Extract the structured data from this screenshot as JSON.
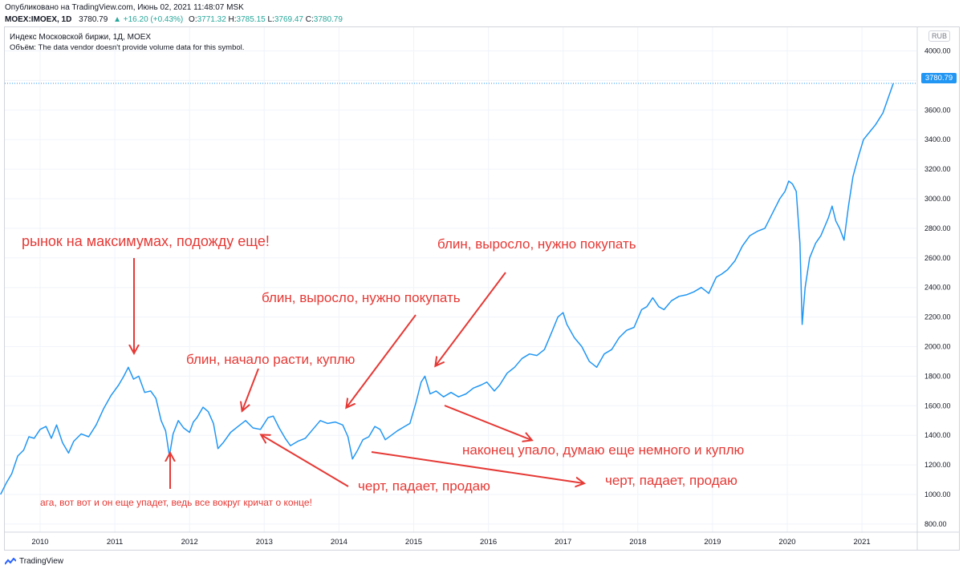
{
  "header": {
    "published": "Опубликовано на TradingView.com, Июнь 02, 2021 11:48:07 MSK",
    "symbol": "MOEX:IMOEX, 1D",
    "last": "3780.79",
    "change": "+16.20 (+0.43%)",
    "o_label": "O:",
    "o_value": "3771.32",
    "h_label": "H:",
    "h_value": "3785.15",
    "l_label": "L:",
    "l_value": "3769.47",
    "c_label": "C:",
    "c_value": "3780.79",
    "up_icon": "triangle-up-icon"
  },
  "legend": {
    "title": "Индекс Московской биржи, 1Д, MOEX",
    "volume": "Объём: The data vendor doesn't provide volume data for this symbol."
  },
  "currency": "RUB",
  "last_price_tag": "3780.79",
  "annotations": {
    "a1": "рынок на максимумах, подожду еще!",
    "a2": "блин, начало расти, куплю",
    "a3": "блин, выросло, нужно покупать",
    "a4": "блин, выросло, нужно покупать",
    "a5": "наконец упало, думаю еще немного и куплю",
    "a6": "черт, падает, продаю",
    "a7": "черт, падает, продаю",
    "a8": "ага, вот вот и он еще упадет, ведь все вокруг кричат о конце!"
  },
  "footer": {
    "brand": "TradingView"
  },
  "colors": {
    "line": "#2196f3",
    "annotation": "#e53935",
    "grid": "#f0f3fa",
    "price_up": "#26a69a"
  },
  "chart_data": {
    "type": "line",
    "x_unit": "year",
    "y_unit": "RUB",
    "ylim": [
      700,
      4100
    ],
    "y_ticks": [
      "4000.00",
      "3800.00",
      "3600.00",
      "3400.00",
      "3200.00",
      "3000.00",
      "2800.00",
      "2600.00",
      "2400.00",
      "2200.00",
      "2000.00",
      "1800.00",
      "1600.00",
      "1400.00",
      "1200.00",
      "1000.00",
      "800.00"
    ],
    "x_ticks": [
      {
        "label": "2010",
        "x": 2010.0
      },
      {
        "label": "2011",
        "x": 2011.0
      },
      {
        "label": "2012",
        "x": 2012.0
      },
      {
        "label": "2013",
        "x": 2013.0
      },
      {
        "label": "2014",
        "x": 2014.0
      },
      {
        "label": "2015",
        "x": 2015.0
      },
      {
        "label": "2016",
        "x": 2016.0
      },
      {
        "label": "2017",
        "x": 2017.0
      },
      {
        "label": "2018",
        "x": 2018.0
      },
      {
        "label": "2019",
        "x": 2019.0
      },
      {
        "label": "2020",
        "x": 2020.0
      },
      {
        "label": "2021",
        "x": 2021.0
      }
    ],
    "last_value": 3780.79,
    "series": [
      {
        "points": [
          [
            2009.47,
            1000
          ],
          [
            2009.55,
            1080
          ],
          [
            2009.62,
            1140
          ],
          [
            2009.7,
            1260
          ],
          [
            2009.78,
            1300
          ],
          [
            2009.85,
            1390
          ],
          [
            2009.92,
            1380
          ],
          [
            2010.0,
            1440
          ],
          [
            2010.08,
            1460
          ],
          [
            2010.15,
            1380
          ],
          [
            2010.22,
            1470
          ],
          [
            2010.3,
            1350
          ],
          [
            2010.38,
            1280
          ],
          [
            2010.45,
            1360
          ],
          [
            2010.55,
            1410
          ],
          [
            2010.65,
            1390
          ],
          [
            2010.75,
            1470
          ],
          [
            2010.85,
            1580
          ],
          [
            2010.95,
            1670
          ],
          [
            2011.05,
            1740
          ],
          [
            2011.12,
            1800
          ],
          [
            2011.18,
            1860
          ],
          [
            2011.25,
            1780
          ],
          [
            2011.32,
            1800
          ],
          [
            2011.4,
            1690
          ],
          [
            2011.48,
            1700
          ],
          [
            2011.55,
            1650
          ],
          [
            2011.62,
            1500
          ],
          [
            2011.68,
            1430
          ],
          [
            2011.73,
            1260
          ],
          [
            2011.78,
            1410
          ],
          [
            2011.85,
            1500
          ],
          [
            2011.92,
            1450
          ],
          [
            2012.0,
            1420
          ],
          [
            2012.05,
            1490
          ],
          [
            2012.1,
            1520
          ],
          [
            2012.18,
            1590
          ],
          [
            2012.25,
            1560
          ],
          [
            2012.32,
            1480
          ],
          [
            2012.38,
            1310
          ],
          [
            2012.45,
            1350
          ],
          [
            2012.55,
            1420
          ],
          [
            2012.65,
            1460
          ],
          [
            2012.75,
            1500
          ],
          [
            2012.85,
            1450
          ],
          [
            2012.95,
            1440
          ],
          [
            2013.05,
            1520
          ],
          [
            2013.12,
            1530
          ],
          [
            2013.2,
            1450
          ],
          [
            2013.28,
            1380
          ],
          [
            2013.35,
            1330
          ],
          [
            2013.45,
            1360
          ],
          [
            2013.55,
            1380
          ],
          [
            2013.65,
            1440
          ],
          [
            2013.75,
            1500
          ],
          [
            2013.85,
            1480
          ],
          [
            2013.95,
            1490
          ],
          [
            2014.05,
            1470
          ],
          [
            2014.12,
            1390
          ],
          [
            2014.18,
            1240
          ],
          [
            2014.25,
            1300
          ],
          [
            2014.32,
            1370
          ],
          [
            2014.4,
            1390
          ],
          [
            2014.48,
            1460
          ],
          [
            2014.55,
            1440
          ],
          [
            2014.62,
            1370
          ],
          [
            2014.7,
            1400
          ],
          [
            2014.78,
            1430
          ],
          [
            2014.88,
            1460
          ],
          [
            2014.95,
            1480
          ],
          [
            2015.03,
            1620
          ],
          [
            2015.1,
            1760
          ],
          [
            2015.15,
            1800
          ],
          [
            2015.22,
            1680
          ],
          [
            2015.3,
            1700
          ],
          [
            2015.4,
            1660
          ],
          [
            2015.5,
            1690
          ],
          [
            2015.6,
            1660
          ],
          [
            2015.7,
            1680
          ],
          [
            2015.8,
            1720
          ],
          [
            2015.9,
            1740
          ],
          [
            2015.98,
            1760
          ],
          [
            2016.08,
            1700
          ],
          [
            2016.15,
            1740
          ],
          [
            2016.25,
            1820
          ],
          [
            2016.35,
            1860
          ],
          [
            2016.45,
            1920
          ],
          [
            2016.55,
            1950
          ],
          [
            2016.65,
            1940
          ],
          [
            2016.75,
            1980
          ],
          [
            2016.85,
            2100
          ],
          [
            2016.93,
            2200
          ],
          [
            2017.0,
            2230
          ],
          [
            2017.05,
            2150
          ],
          [
            2017.15,
            2060
          ],
          [
            2017.25,
            2000
          ],
          [
            2017.35,
            1900
          ],
          [
            2017.45,
            1860
          ],
          [
            2017.55,
            1950
          ],
          [
            2017.65,
            1980
          ],
          [
            2017.75,
            2060
          ],
          [
            2017.85,
            2110
          ],
          [
            2017.95,
            2130
          ],
          [
            2018.05,
            2250
          ],
          [
            2018.12,
            2270
          ],
          [
            2018.2,
            2330
          ],
          [
            2018.28,
            2270
          ],
          [
            2018.35,
            2250
          ],
          [
            2018.45,
            2310
          ],
          [
            2018.55,
            2340
          ],
          [
            2018.65,
            2350
          ],
          [
            2018.75,
            2370
          ],
          [
            2018.85,
            2400
          ],
          [
            2018.95,
            2360
          ],
          [
            2019.05,
            2470
          ],
          [
            2019.12,
            2490
          ],
          [
            2019.2,
            2520
          ],
          [
            2019.3,
            2580
          ],
          [
            2019.4,
            2680
          ],
          [
            2019.5,
            2750
          ],
          [
            2019.6,
            2780
          ],
          [
            2019.7,
            2800
          ],
          [
            2019.8,
            2900
          ],
          [
            2019.9,
            3000
          ],
          [
            2019.97,
            3050
          ],
          [
            2020.02,
            3120
          ],
          [
            2020.07,
            3100
          ],
          [
            2020.12,
            3050
          ],
          [
            2020.17,
            2700
          ],
          [
            2020.2,
            2150
          ],
          [
            2020.24,
            2400
          ],
          [
            2020.3,
            2600
          ],
          [
            2020.38,
            2700
          ],
          [
            2020.45,
            2750
          ],
          [
            2020.55,
            2870
          ],
          [
            2020.6,
            2950
          ],
          [
            2020.65,
            2850
          ],
          [
            2020.7,
            2800
          ],
          [
            2020.76,
            2720
          ],
          [
            2020.82,
            2950
          ],
          [
            2020.88,
            3150
          ],
          [
            2020.95,
            3280
          ],
          [
            2021.02,
            3400
          ],
          [
            2021.1,
            3450
          ],
          [
            2021.18,
            3500
          ],
          [
            2021.28,
            3580
          ],
          [
            2021.35,
            3680
          ],
          [
            2021.42,
            3780.79
          ]
        ]
      }
    ]
  }
}
